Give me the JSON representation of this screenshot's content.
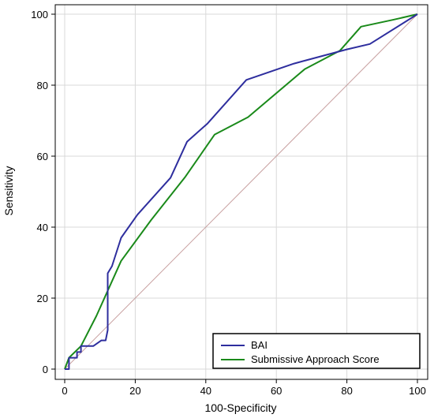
{
  "chart_data": {
    "type": "line",
    "title": "",
    "xlabel": "100-Specificity",
    "ylabel": "Sensitivity",
    "xlim": [
      0,
      100
    ],
    "ylim": [
      0,
      100
    ],
    "x_ticks": [
      "0",
      "20",
      "40",
      "60",
      "80",
      "100"
    ],
    "y_ticks": [
      "0",
      "20",
      "40",
      "60",
      "80",
      "100"
    ],
    "grid": true,
    "legend_position": "bottom-right",
    "series": [
      {
        "name": "BAI",
        "color": "#2e2e9e",
        "points": [
          [
            0,
            0
          ],
          [
            1.2,
            0
          ],
          [
            1.2,
            1.6
          ],
          [
            1.2,
            3.2
          ],
          [
            3.5,
            3.2
          ],
          [
            3.5,
            4.8
          ],
          [
            4.6,
            4.8
          ],
          [
            4.6,
            6.5
          ],
          [
            8.1,
            6.5
          ],
          [
            10.4,
            8.1
          ],
          [
            11.6,
            8.1
          ],
          [
            12.2,
            11
          ],
          [
            12.2,
            27
          ],
          [
            13.4,
            29
          ],
          [
            16,
            37
          ],
          [
            20.6,
            43.5
          ],
          [
            30,
            53.9
          ],
          [
            34.7,
            64.1
          ],
          [
            40.5,
            69.2
          ],
          [
            51.5,
            81.5
          ],
          [
            65,
            86.1
          ],
          [
            80,
            90.1
          ],
          [
            86.5,
            91.6
          ],
          [
            100,
            100
          ]
        ]
      },
      {
        "name": "Submissive Approach Score",
        "color": "#1a8a1a",
        "points": [
          [
            0,
            0
          ],
          [
            1.2,
            3.2
          ],
          [
            4.6,
            6.5
          ],
          [
            9,
            15
          ],
          [
            16,
            30.5
          ],
          [
            24.5,
            42
          ],
          [
            34.2,
            54.2
          ],
          [
            42.5,
            66.1
          ],
          [
            52,
            71
          ],
          [
            68,
            84.5
          ],
          [
            78,
            89.7
          ],
          [
            84,
            96.5
          ],
          [
            93,
            98.4
          ],
          [
            100,
            100
          ]
        ]
      },
      {
        "name": "",
        "color": "#c8a0a0",
        "points": [
          [
            0,
            0
          ],
          [
            100,
            100
          ]
        ]
      }
    ]
  }
}
